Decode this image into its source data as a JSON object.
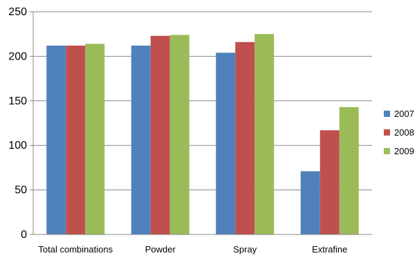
{
  "chart_data": {
    "type": "bar",
    "categories": [
      "Total combinations",
      "Powder",
      "Spray",
      "Extrafine"
    ],
    "series": [
      {
        "name": "2007",
        "color": "#4f81bd",
        "values": [
          212,
          212,
          204,
          71
        ]
      },
      {
        "name": "2008",
        "color": "#c0504d",
        "values": [
          212,
          223,
          216,
          117
        ]
      },
      {
        "name": "2009",
        "color": "#9bbb59",
        "values": [
          214,
          224,
          225,
          143
        ]
      }
    ],
    "ylim": [
      0,
      250
    ],
    "yticks": [
      0,
      50,
      100,
      150,
      200,
      250
    ],
    "grid": true,
    "legend": "right"
  }
}
